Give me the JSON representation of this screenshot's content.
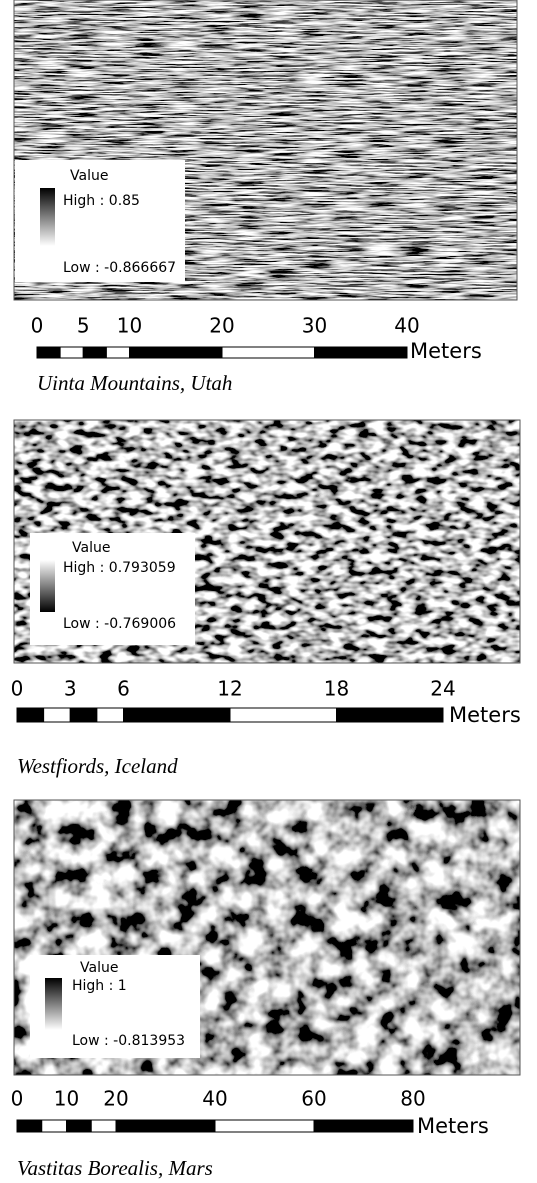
{
  "panels": [
    {
      "legend": {
        "title": "Value",
        "high": "High : 0.85",
        "low": "Low : -0.866667"
      },
      "scale": {
        "ticks": [
          0,
          5,
          10,
          20,
          30,
          40
        ],
        "unit": "Meters"
      },
      "caption": "Uinta Mountains, Utah"
    },
    {
      "legend": {
        "title": "Value",
        "high": "High : 0.793059",
        "low": "Low : -0.769006"
      },
      "scale": {
        "ticks": [
          0,
          3,
          6,
          12,
          18,
          24
        ],
        "unit": "Meters"
      },
      "caption": "Westfiords, Iceland"
    },
    {
      "legend": {
        "title": "Value",
        "high": "High : 1",
        "low": "Low : -0.813953"
      },
      "scale": {
        "ticks": [
          0,
          10,
          20,
          40,
          60,
          80
        ],
        "unit": "Meters"
      },
      "caption": "Vastitas Borealis, Mars"
    }
  ]
}
